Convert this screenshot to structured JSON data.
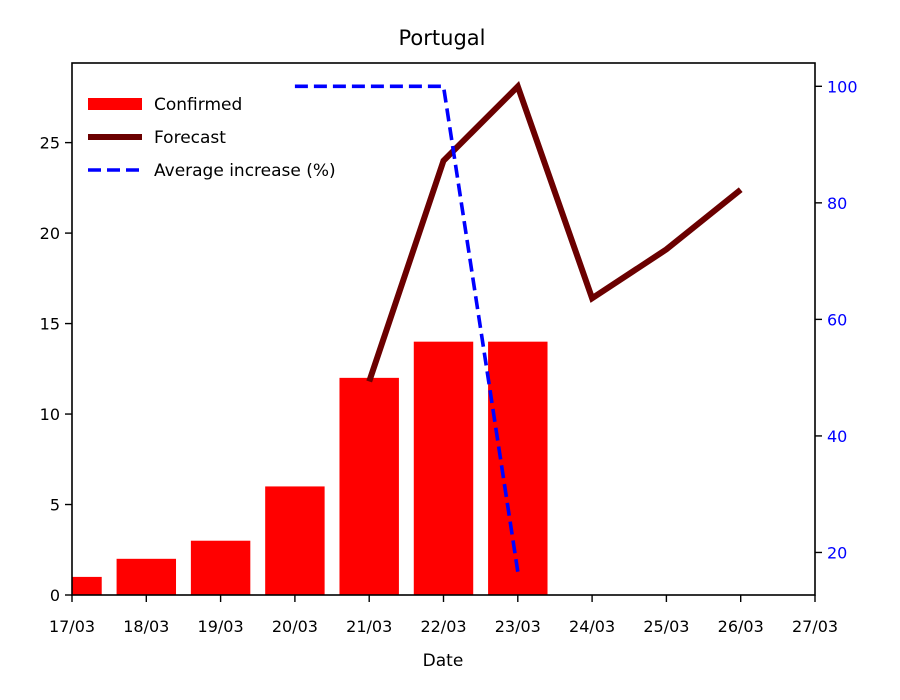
{
  "chart_data": {
    "type": "bar",
    "title": "Portugal",
    "xlabel": "Date",
    "ylabel": "",
    "y2label": "",
    "categories": [
      "17/03",
      "18/03",
      "19/03",
      "20/03",
      "21/03",
      "22/03",
      "23/03",
      "24/03",
      "25/03",
      "26/03",
      "27/03"
    ],
    "xlim": [
      0,
      10
    ],
    "ylim": [
      0,
      29.4
    ],
    "y2lim": [
      12.7,
      104
    ],
    "yticks": [
      0,
      5,
      10,
      15,
      20,
      25
    ],
    "y2ticks": [
      20,
      40,
      60,
      80,
      100
    ],
    "grid": false,
    "legend_position": "top-left",
    "series": [
      {
        "name": "Confirmed",
        "kind": "bar",
        "axis": "left",
        "color": "#ff0000",
        "x": [
          0,
          1,
          2,
          3,
          4,
          5,
          6
        ],
        "values": [
          1,
          2,
          3,
          6,
          12,
          14,
          14
        ]
      },
      {
        "name": "Forecast",
        "kind": "line",
        "axis": "left",
        "color": "#6b0000",
        "line_style": "solid",
        "x": [
          4,
          5,
          6,
          7,
          8,
          9
        ],
        "values": [
          11.8,
          24,
          28.1,
          16.4,
          19.1,
          22.4
        ]
      },
      {
        "name": "Average increase (%)",
        "kind": "line",
        "axis": "right",
        "color": "#0000ff",
        "line_style": "dashed",
        "x": [
          3,
          4,
          5,
          6
        ],
        "values": [
          100,
          100,
          100,
          16.7
        ]
      }
    ]
  }
}
